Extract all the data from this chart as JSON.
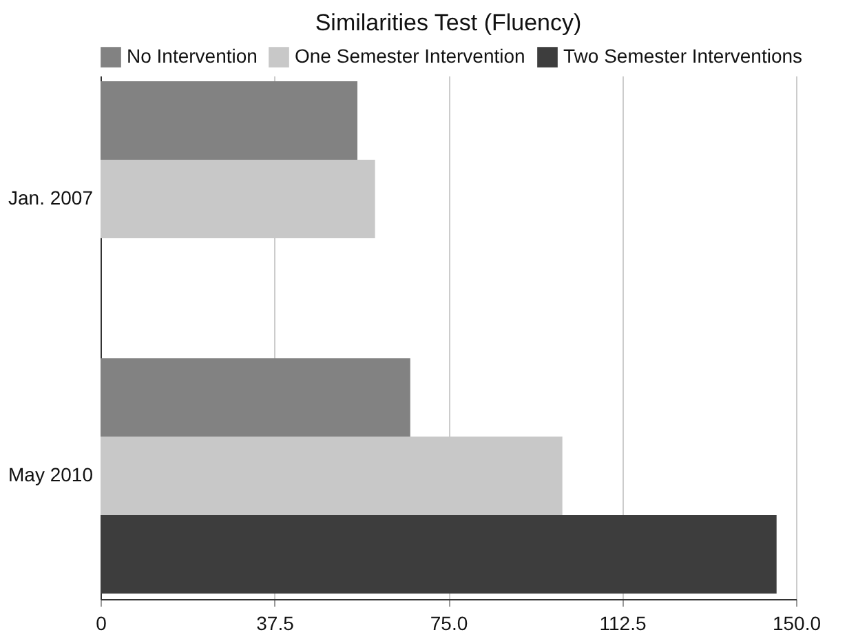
{
  "chart_data": {
    "type": "bar",
    "orientation": "horizontal",
    "title": "Similarities Test (Fluency)",
    "categories": [
      "Jan. 2007",
      "May 2010"
    ],
    "series": [
      {
        "name": "No Intervention",
        "color": "#828282",
        "values": [
          55.4,
          66.8
        ]
      },
      {
        "name": "One Semester Intervention",
        "color": "#c8c8c8",
        "values": [
          59.2,
          99.6
        ]
      },
      {
        "name": "Two Semester Interventions",
        "color": "#3d3d3d",
        "values": [
          null,
          145.8
        ]
      }
    ],
    "xlim": [
      0,
      150
    ],
    "xticks": [
      0,
      37.5,
      {
        "value": 75,
        "label": "75.0"
      },
      112.5,
      {
        "value": 150,
        "label": "150.0"
      }
    ],
    "grid": "x",
    "legend": "top"
  }
}
